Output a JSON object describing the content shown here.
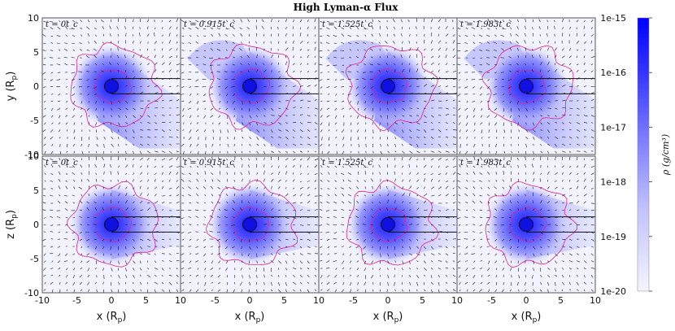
{
  "title": "High Lyman-α Flux",
  "colors": {
    "background_low": "#f2f3ff",
    "density_high": "#0000ff",
    "contour": "#e0208f",
    "arrow": "#111111",
    "planet": "#1010e0",
    "frame": "#555555"
  },
  "chart_data": {
    "type": "heatmap",
    "title": "High Lyman-α Flux",
    "rows": [
      {
        "ylabel_main": "y (R",
        "ylabel_sub": "p",
        "ylabel_end": ")"
      },
      {
        "ylabel_main": "z (R",
        "ylabel_sub": "p",
        "ylabel_end": ")"
      }
    ],
    "panels": [
      {
        "row": 0,
        "col": 0,
        "time_label": "t = 0t_c"
      },
      {
        "row": 0,
        "col": 1,
        "time_label": "t = 0.915t_c"
      },
      {
        "row": 0,
        "col": 2,
        "time_label": "t = 1.525t_c"
      },
      {
        "row": 0,
        "col": 3,
        "time_label": "t = 1.983t_c"
      },
      {
        "row": 1,
        "col": 0,
        "time_label": "t = 0t_c"
      },
      {
        "row": 1,
        "col": 1,
        "time_label": "t = 0.915t_c"
      },
      {
        "row": 1,
        "col": 2,
        "time_label": "t = 1.525t_c"
      },
      {
        "row": 1,
        "col": 3,
        "time_label": "t = 1.983t_c"
      }
    ],
    "xlabel_main": "x (R",
    "xlabel_sub": "p",
    "xlabel_end": ")",
    "xlim": [
      -10,
      10
    ],
    "ylim": [
      -10,
      10
    ],
    "x_ticks_first": [
      "-10",
      "-5",
      "0",
      "5",
      "10"
    ],
    "x_ticks_other": [
      "-10",
      "-5",
      "0",
      "5",
      "10"
    ],
    "x_ticks_last": [
      "-10",
      "-5",
      "0",
      "5",
      "10"
    ],
    "y_ticks": [
      "10",
      "5",
      "0",
      "-5",
      "-10"
    ],
    "planet_position": [
      0,
      0
    ],
    "planet_radius": 1,
    "colorbar": {
      "label": "ρ (g/cm³)",
      "scale": "log",
      "range": [
        1e-20,
        1e-15
      ],
      "ticks": [
        "1e-15",
        "1e-16",
        "1e-17",
        "1e-18",
        "1e-19",
        "1e-20"
      ]
    }
  }
}
